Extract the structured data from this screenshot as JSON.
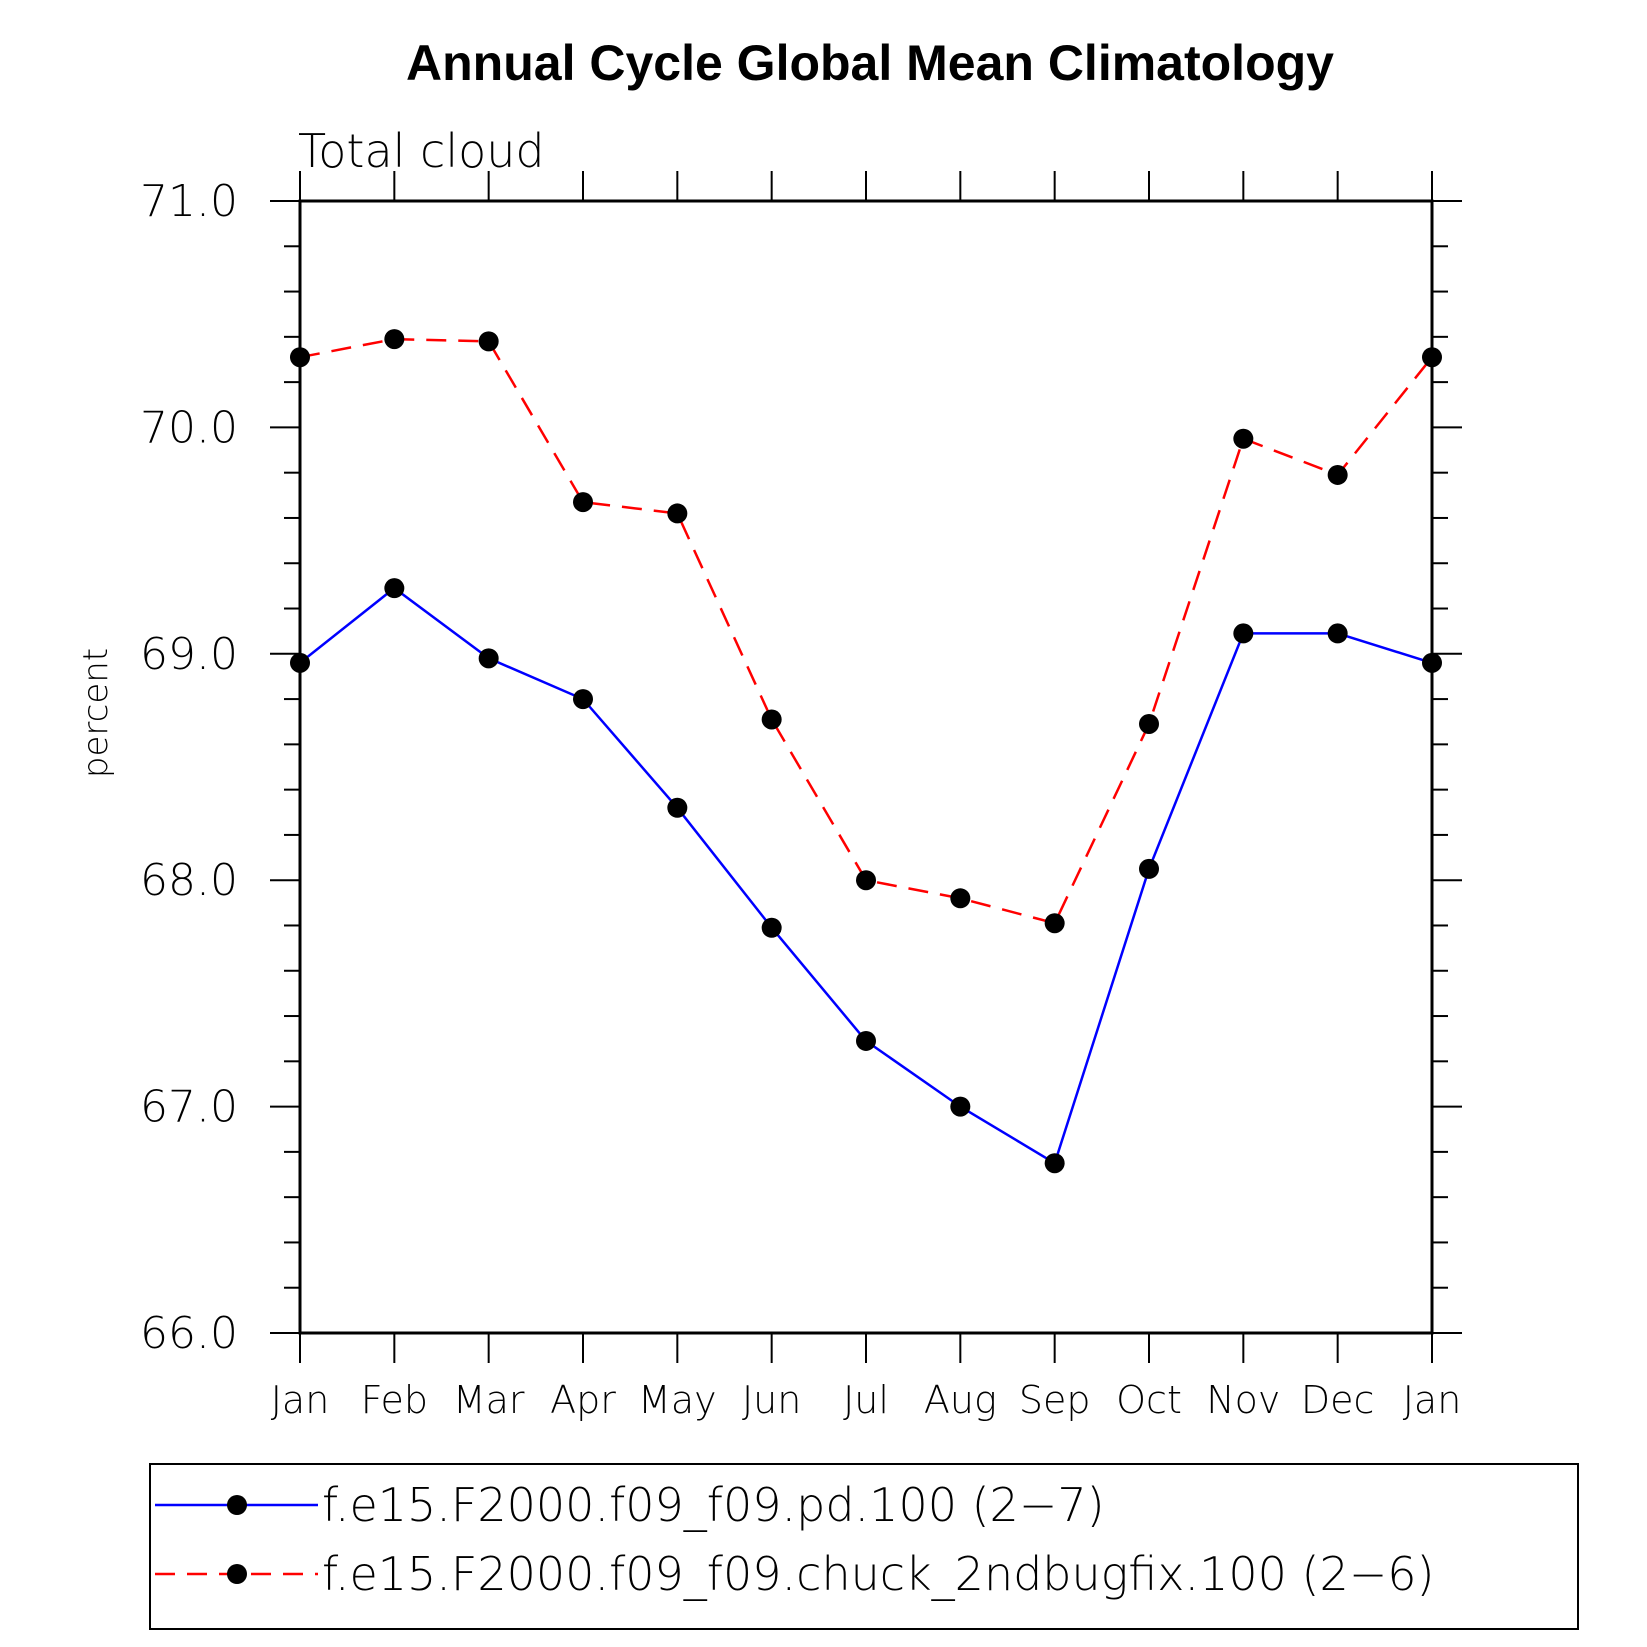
{
  "chart_data": {
    "type": "line",
    "title": "Annual Cycle Global Mean Climatology",
    "subtitle": "Total cloud",
    "xlabel": "",
    "ylabel": "percent",
    "categories": [
      "Jan",
      "Feb",
      "Mar",
      "Apr",
      "May",
      "Jun",
      "Jul",
      "Aug",
      "Sep",
      "Oct",
      "Nov",
      "Dec",
      "Jan"
    ],
    "ylim": [
      66.0,
      71.0
    ],
    "yticks": [
      "66.0",
      "67.0",
      "68.0",
      "69.0",
      "70.0",
      "71.0"
    ],
    "grid": false,
    "legend_position": "bottom",
    "series": [
      {
        "name": "f.e15.F2000.f09_f09.pd.100 (2−7)",
        "color": "#0000ff",
        "style": "solid",
        "marker": "filled-circle",
        "values": [
          68.96,
          69.29,
          68.98,
          68.8,
          68.32,
          67.79,
          67.29,
          67.0,
          66.75,
          68.05,
          69.09,
          69.09,
          68.96
        ]
      },
      {
        "name": "f.e15.F2000.f09_f09.chuck_2ndbugfix.100 (2−6)",
        "color": "#ff0000",
        "style": "dashed",
        "marker": "filled-circle",
        "values": [
          70.31,
          70.39,
          70.38,
          69.67,
          69.62,
          68.71,
          68.0,
          67.92,
          67.81,
          68.69,
          69.95,
          69.79,
          70.31
        ]
      }
    ]
  }
}
